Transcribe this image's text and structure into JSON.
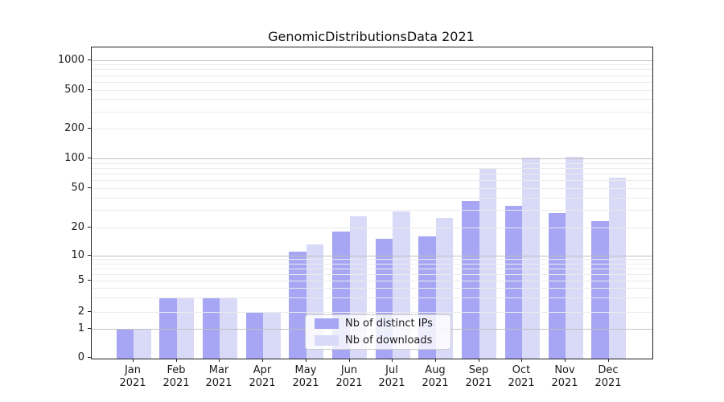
{
  "chart_data": {
    "type": "bar",
    "title": "GenomicDistributionsData 2021",
    "categories": [
      "Jan 2021",
      "Feb 2021",
      "Mar 2021",
      "Apr 2021",
      "May 2021",
      "Jun 2021",
      "Jul 2021",
      "Aug 2021",
      "Sep 2021",
      "Oct 2021",
      "Nov 2021",
      "Dec 2021"
    ],
    "series": [
      {
        "name": "Nb of distinct IPs",
        "color": "#a6a6f4",
        "values": [
          1,
          3,
          3,
          2,
          11,
          18,
          15,
          16,
          37,
          33,
          28,
          23
        ]
      },
      {
        "name": "Nb of downloads",
        "color": "#d9d9f8",
        "values": [
          1,
          3,
          3,
          2,
          13,
          26,
          29,
          25,
          80,
          102,
          103,
          64
        ]
      }
    ],
    "xlabel": "",
    "ylabel": "",
    "yscale": "symlog",
    "yticks": [
      0,
      1,
      2,
      5,
      10,
      20,
      50,
      100,
      200,
      500,
      1000
    ],
    "ylim": [
      0,
      1000
    ],
    "grid": true,
    "grid_above_bars": true,
    "legend_position": "lower center"
  }
}
